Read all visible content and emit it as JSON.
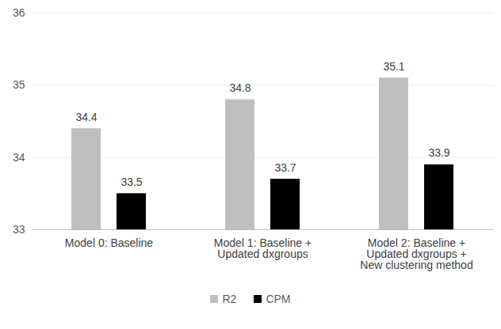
{
  "chart_data": {
    "type": "bar",
    "categories": [
      "Model 0: Baseline",
      "Model 1: Baseline +\nUpdated dxgroups",
      "Model 2: Baseline +\nUpdated dxgroups +\nNew clustering method"
    ],
    "series": [
      {
        "name": "R2",
        "color": "#bfbfbf",
        "values": [
          34.4,
          34.8,
          35.1
        ]
      },
      {
        "name": "CPM",
        "color": "#000000",
        "values": [
          33.5,
          33.7,
          33.9
        ]
      }
    ],
    "ylim": [
      33,
      36
    ],
    "yticks": [
      33,
      34,
      35,
      36
    ],
    "grid": true,
    "data_labels": true,
    "legend": "bottom"
  }
}
